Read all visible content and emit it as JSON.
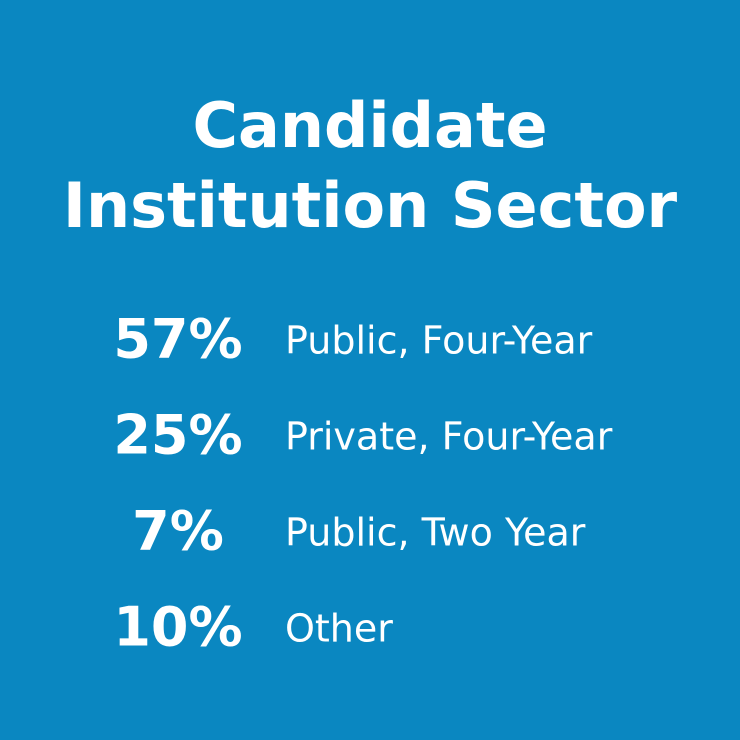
{
  "header": {
    "title_lines": [
      "Candidate",
      "Institution Sector"
    ]
  },
  "items": [
    {
      "value": "57%",
      "label": "Public, Four-Year"
    },
    {
      "value": "25%",
      "label": "Private, Four-Year"
    },
    {
      "value": "7%",
      "label": "Public, Two Year"
    },
    {
      "value": "10%",
      "label": "Other"
    }
  ]
}
